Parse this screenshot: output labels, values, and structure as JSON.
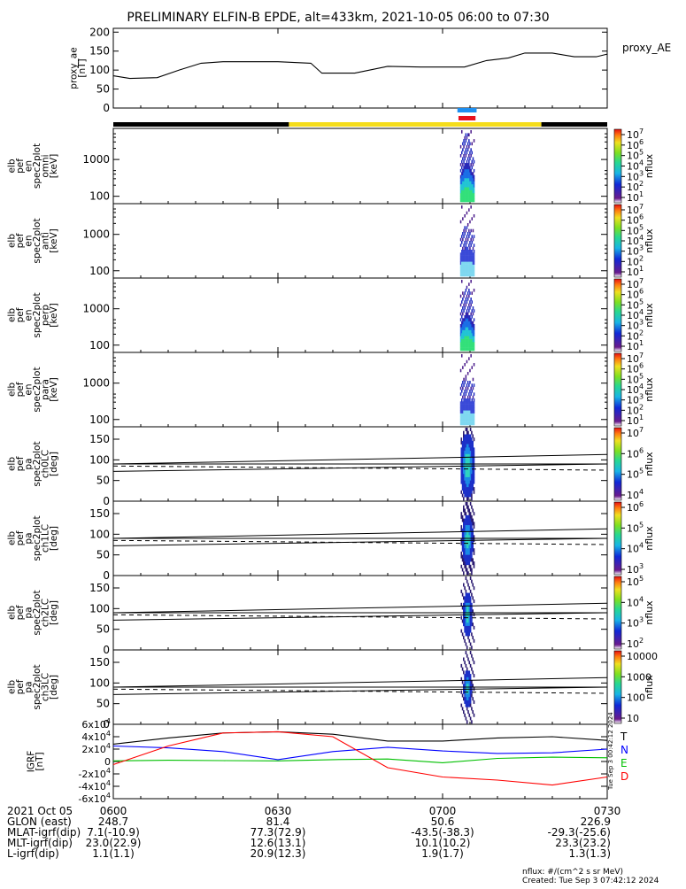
{
  "title": "PRELIMINARY ELFIN-B EPDE, alt=433km, 2021-10-05 06:00 to 07:30",
  "footer": {
    "units_note": "nflux: #/(cm^2 s sr MeV)",
    "created": "Created: Tue Sep  3 07:42:12 2024",
    "stamp": "Tue Sep  3 00:42:12 2024"
  },
  "colors": {
    "state_bar_day": "#f5dd1a",
    "state_bar_night": "#000000",
    "science_zone_blue": "#1e8ff0",
    "science_zone_red": "#e8111d"
  },
  "ephemeris": {
    "row_labels": [
      "2021 Oct 05",
      "GLON (east)",
      "MLAT-igrf(dip)",
      "MLT-igrf(dip)",
      "L-igrf(dip)"
    ],
    "tick_times": [
      "0600",
      "0630",
      "0700",
      "0730"
    ],
    "values": {
      "glon": [
        "248.7",
        "81.4",
        "50.6",
        "226.9"
      ],
      "mlat": [
        "7.1(-10.9)",
        "77.3(72.9)",
        "-43.5(-38.3)",
        "-29.3(-25.6)"
      ],
      "mlt": [
        "23.0(22.9)",
        "12.6(13.1)",
        "10.1(10.2)",
        "23.3(23.2)"
      ],
      "l": [
        "1.1(1.1)",
        "20.9(12.3)",
        "1.9(1.7)",
        "1.3(1.3)"
      ]
    }
  },
  "panels": {
    "ae": {
      "ylabel": "proxy_ae\n[nT]",
      "right_label": "proxy_AE"
    },
    "en_omni": {
      "ylabel": "elb\npef\nen\nspec2plot\nomni\n[keV]"
    },
    "en_anti": {
      "ylabel": "elb\npef\nen\nspec2plot\nanti\n[keV]"
    },
    "en_perp": {
      "ylabel": "elb\npef\nen\nspec2plot\nperp\n[keV]"
    },
    "en_para": {
      "ylabel": "elb\npef\nen\nspec2plot\npara\n[keV]"
    },
    "pa_ch0": {
      "ylabel": "elb\npef\npa\nspec2plot\nch0LC\n[deg]"
    },
    "pa_ch1": {
      "ylabel": "elb\npef\npa\nspec2plot\nch1LC\n[deg]"
    },
    "pa_ch2": {
      "ylabel": "elb\npef\npa\nspec2plot\nch2LC\n[deg]"
    },
    "pa_ch3": {
      "ylabel": "elb\npef\npa\nspec2plot\nch3LC\n[deg]"
    },
    "igrf": {
      "ylabel": "IGRF\n[nT]",
      "legend": [
        "T",
        "N",
        "E",
        "D"
      ]
    }
  },
  "colorbars": {
    "energy": {
      "ticks": [
        "10^7",
        "10^6",
        "10^5",
        "10^4",
        "10^3",
        "10^2",
        "10^1"
      ],
      "label": "nflux"
    },
    "pa_ch0": {
      "ticks": [
        "10^7",
        "10^6",
        "10^5",
        "10^4"
      ],
      "label": "nflux"
    },
    "pa_ch1": {
      "ticks": [
        "10^6",
        "10^5",
        "10^4",
        "10^3"
      ],
      "label": "nflux"
    },
    "pa_ch2": {
      "ticks": [
        "10^5",
        "10^4",
        "10^3",
        "10^2"
      ],
      "label": "nflux"
    },
    "pa_ch3": {
      "ticks": [
        "10000",
        "1000",
        "100",
        "10"
      ],
      "label": "nflux"
    }
  },
  "chart_data": {
    "type": "line",
    "title": "PRELIMINARY ELFIN-B EPDE, alt=433km, 2021-10-05 06:00 to 07:30",
    "x_range_minutes": [
      0,
      90
    ],
    "x_tick_labels": [
      "0600",
      "0630",
      "0700",
      "0730"
    ],
    "proxy_ae": {
      "ylim": [
        0,
        210
      ],
      "yticks": [
        0,
        50,
        100,
        150,
        200
      ],
      "x": [
        0,
        3,
        8,
        12,
        16,
        20,
        25,
        30,
        36,
        38,
        44,
        50,
        56,
        60,
        64,
        68,
        72,
        75,
        80,
        84,
        88,
        90
      ],
      "values": [
        85,
        78,
        80,
        100,
        118,
        122,
        122,
        122,
        118,
        92,
        92,
        110,
        108,
        108,
        108,
        125,
        132,
        145,
        145,
        135,
        135,
        142
      ]
    },
    "energy_panels": {
      "ylim_keV": [
        63,
        7000
      ],
      "yticks_keV": [
        100,
        1000
      ],
      "data_interval_minutes": [
        63.2,
        65.8
      ]
    },
    "pitch_angle_panels": {
      "ylim_deg": [
        0,
        180
      ],
      "yticks_deg": [
        0,
        50,
        100,
        150
      ],
      "loss_cone_upper": {
        "x": [
          0,
          90
        ],
        "values": [
          90,
          113
        ]
      },
      "loss_cone_mid": {
        "x": [
          0,
          90
        ],
        "values": [
          90,
          90
        ]
      },
      "loss_cone_lower": {
        "x": [
          0,
          90
        ],
        "values": [
          72,
          90
        ]
      },
      "dashed_line": {
        "x": [
          0,
          90
        ],
        "values": [
          85,
          75
        ]
      }
    },
    "igrf": {
      "ylim_nT": [
        -60000,
        60000
      ],
      "yticks": [
        "6x10^4",
        "4x10^4",
        "2x10^4",
        "0",
        "-2x10^4",
        "-4x10^4",
        "-6x10^4"
      ],
      "x": [
        0,
        10,
        20,
        30,
        40,
        50,
        60,
        70,
        80,
        90
      ],
      "series": [
        {
          "name": "T",
          "color": "#000000",
          "values": [
            28000,
            38000,
            46000,
            48000,
            44000,
            33000,
            33000,
            38000,
            40000,
            34000
          ]
        },
        {
          "name": "N",
          "color": "#0000ff",
          "values": [
            25000,
            22000,
            16000,
            3000,
            16000,
            23000,
            17000,
            13000,
            14000,
            20000
          ]
        },
        {
          "name": "E",
          "color": "#00c000",
          "values": [
            1000,
            2000,
            1500,
            1000,
            3000,
            4000,
            -2000,
            5000,
            7000,
            6000
          ]
        },
        {
          "name": "D",
          "color": "#ff0000",
          "values": [
            -5000,
            25000,
            46000,
            48000,
            40000,
            -10000,
            -25000,
            -30000,
            -38000,
            -25000
          ]
        }
      ]
    }
  }
}
